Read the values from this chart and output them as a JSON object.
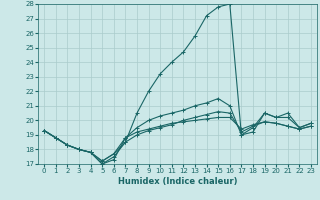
{
  "xlabel": "Humidex (Indice chaleur)",
  "bg_color": "#cce8e8",
  "grid_color": "#aacccc",
  "line_color": "#1a6666",
  "xlim": [
    -0.5,
    23.5
  ],
  "ylim": [
    17,
    28
  ],
  "yticks": [
    17,
    18,
    19,
    20,
    21,
    22,
    23,
    24,
    25,
    26,
    27,
    28
  ],
  "xticks": [
    0,
    1,
    2,
    3,
    4,
    5,
    6,
    7,
    8,
    9,
    10,
    11,
    12,
    13,
    14,
    15,
    16,
    17,
    18,
    19,
    20,
    21,
    22,
    23
  ],
  "series": [
    {
      "x": [
        0,
        1,
        2,
        3,
        4,
        5,
        6,
        7,
        8,
        9,
        10,
        11,
        12,
        13,
        14,
        15,
        16,
        17,
        18,
        19,
        20,
        21,
        22,
        23
      ],
      "y": [
        19.3,
        18.8,
        18.3,
        18.0,
        17.8,
        17.0,
        17.5,
        18.5,
        20.5,
        22.0,
        23.2,
        24.0,
        24.7,
        25.8,
        27.2,
        27.8,
        28.0,
        19.0,
        19.2,
        20.5,
        20.2,
        20.5,
        19.5,
        19.8
      ]
    },
    {
      "x": [
        0,
        1,
        2,
        3,
        4,
        5,
        6,
        7,
        8,
        9,
        10,
        11,
        12,
        13,
        14,
        15,
        16,
        17,
        18,
        19,
        20,
        21,
        22,
        23
      ],
      "y": [
        19.3,
        18.8,
        18.3,
        18.0,
        17.8,
        17.0,
        17.3,
        18.8,
        19.5,
        20.0,
        20.3,
        20.5,
        20.7,
        21.0,
        21.2,
        21.5,
        21.0,
        19.0,
        19.5,
        20.5,
        20.2,
        20.2,
        19.5,
        19.8
      ]
    },
    {
      "x": [
        0,
        1,
        2,
        3,
        4,
        5,
        6,
        7,
        8,
        9,
        10,
        11,
        12,
        13,
        14,
        15,
        16,
        17,
        18,
        19,
        20,
        21,
        22,
        23
      ],
      "y": [
        19.3,
        18.8,
        18.3,
        18.0,
        17.8,
        17.2,
        17.7,
        18.5,
        19.0,
        19.3,
        19.5,
        19.7,
        20.0,
        20.2,
        20.4,
        20.6,
        20.5,
        19.2,
        19.6,
        19.9,
        19.8,
        19.6,
        19.4,
        19.6
      ]
    },
    {
      "x": [
        0,
        1,
        2,
        3,
        4,
        5,
        6,
        7,
        8,
        9,
        10,
        11,
        12,
        13,
        14,
        15,
        16,
        17,
        18,
        19,
        20,
        21,
        22,
        23
      ],
      "y": [
        19.3,
        18.8,
        18.3,
        18.0,
        17.8,
        17.2,
        17.7,
        18.8,
        19.2,
        19.4,
        19.6,
        19.8,
        19.9,
        20.0,
        20.1,
        20.2,
        20.2,
        19.4,
        19.7,
        19.9,
        19.8,
        19.6,
        19.4,
        19.6
      ]
    }
  ]
}
